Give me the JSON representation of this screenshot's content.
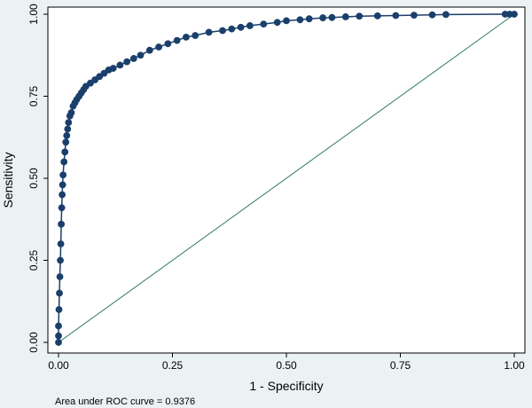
{
  "chart_data": {
    "type": "scatter",
    "xlabel": "1 - Specificity",
    "ylabel": "Sensitivity",
    "xlim": [
      0,
      1
    ],
    "ylim": [
      0,
      1
    ],
    "x_ticks": [
      "0.00",
      "0.25",
      "0.50",
      "0.75",
      "1.00"
    ],
    "y_ticks": [
      "0.00",
      "0.25",
      "0.50",
      "0.75",
      "1.00"
    ],
    "note": "Area under ROC curve = 0.9376",
    "grid": false,
    "legend": "none",
    "series": [
      {
        "kind": "roc-curve-markers",
        "x": [
          0.0,
          0.0,
          0.0,
          0.001,
          0.002,
          0.003,
          0.004,
          0.005,
          0.006,
          0.007,
          0.008,
          0.009,
          0.01,
          0.012,
          0.014,
          0.016,
          0.018,
          0.02,
          0.022,
          0.025,
          0.028,
          0.032,
          0.036,
          0.04,
          0.045,
          0.05,
          0.055,
          0.06,
          0.07,
          0.08,
          0.09,
          0.1,
          0.11,
          0.12,
          0.135,
          0.15,
          0.165,
          0.18,
          0.2,
          0.22,
          0.24,
          0.26,
          0.28,
          0.3,
          0.33,
          0.36,
          0.38,
          0.4,
          0.42,
          0.45,
          0.48,
          0.5,
          0.53,
          0.55,
          0.58,
          0.6,
          0.63,
          0.66,
          0.7,
          0.74,
          0.78,
          0.82,
          0.85,
          0.98,
          0.99,
          1.0
        ],
        "y": [
          0.0,
          0.02,
          0.05,
          0.1,
          0.15,
          0.2,
          0.25,
          0.3,
          0.36,
          0.41,
          0.45,
          0.48,
          0.51,
          0.55,
          0.58,
          0.61,
          0.63,
          0.65,
          0.67,
          0.69,
          0.7,
          0.72,
          0.73,
          0.74,
          0.75,
          0.76,
          0.77,
          0.78,
          0.79,
          0.8,
          0.81,
          0.82,
          0.83,
          0.835,
          0.845,
          0.855,
          0.865,
          0.875,
          0.89,
          0.9,
          0.91,
          0.92,
          0.93,
          0.935,
          0.945,
          0.95,
          0.955,
          0.96,
          0.965,
          0.97,
          0.975,
          0.98,
          0.983,
          0.986,
          0.989,
          0.99,
          0.992,
          0.994,
          0.995,
          0.996,
          0.997,
          0.998,
          0.999,
          1.0,
          1.0,
          1.0
        ]
      },
      {
        "kind": "reference-line",
        "x": [
          0,
          1
        ],
        "y": [
          0,
          1
        ]
      }
    ]
  },
  "colors": {
    "background": "#eaf2f3",
    "plot_region": "#ffffff",
    "curve": "#1a3f6b",
    "reference_line": "#2e7d6a"
  }
}
